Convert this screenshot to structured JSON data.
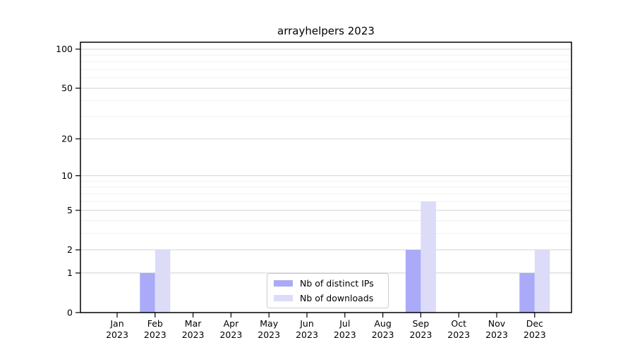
{
  "chart_data": {
    "type": "bar",
    "title": "arrayhelpers 2023",
    "scale": "log1p",
    "categories": [
      "Jan",
      "Feb",
      "Mar",
      "Apr",
      "May",
      "Jun",
      "Jul",
      "Aug",
      "Sep",
      "Oct",
      "Nov",
      "Dec"
    ],
    "category_year": "2023",
    "series": [
      {
        "name": "Nb of distinct IPs",
        "color": "#aaaaf8",
        "values": [
          0,
          1,
          0,
          0,
          0,
          0,
          0,
          0,
          2,
          0,
          0,
          1
        ]
      },
      {
        "name": "Nb of downloads",
        "color": "#dcdcf9",
        "values": [
          0,
          2,
          0,
          0,
          0,
          0,
          0,
          0,
          6,
          0,
          0,
          2
        ]
      }
    ],
    "y_ticks": [
      0,
      1,
      2,
      5,
      10,
      20,
      50,
      100
    ],
    "y_minor_ticks": [
      3,
      4,
      6,
      7,
      8,
      9,
      30,
      40,
      60,
      70,
      80,
      90
    ],
    "ylim": [
      0,
      113
    ],
    "xlabel": "",
    "ylabel": "",
    "grid": "horizontal",
    "legend_position": "lower center",
    "colors": {
      "axis": "#000000",
      "grid_major": "#d2d2d2",
      "grid_minor": "#f0f0f0",
      "text": "#000000",
      "legend_border": "#cccccc",
      "legend_bg": "#ffffff"
    }
  }
}
